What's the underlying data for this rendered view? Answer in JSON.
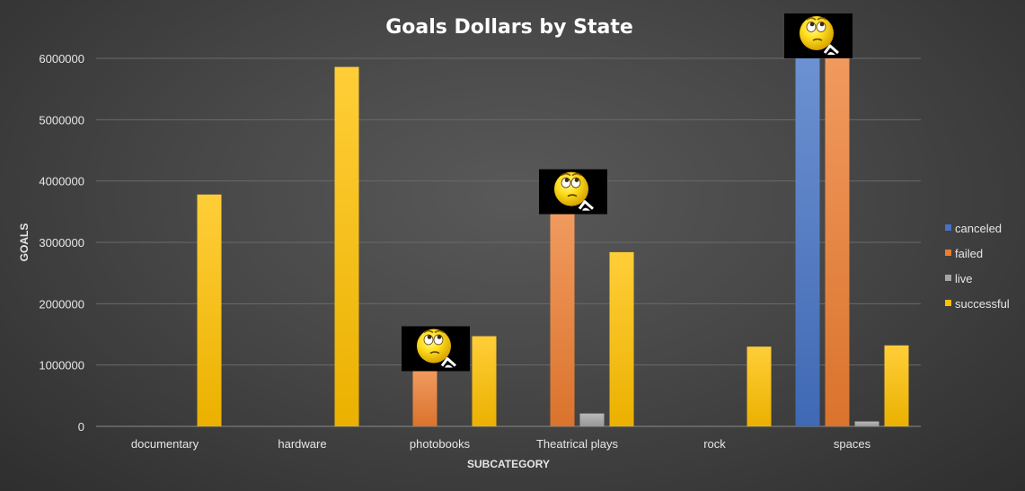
{
  "chart_data": {
    "type": "bar",
    "title": "Goals Dollars by State",
    "xlabel": "SUBCATEGORY",
    "ylabel": "GOALS",
    "categories": [
      "documentary",
      "hardware",
      "photobooks",
      "Theatrical plays",
      "rock",
      "spaces"
    ],
    "series": [
      {
        "name": "canceled",
        "color": "#4472C4",
        "values": [
          0,
          0,
          0,
          0,
          0,
          6000000
        ]
      },
      {
        "name": "failed",
        "color": "#ED7D31",
        "values": [
          0,
          0,
          900000,
          3460000,
          0,
          6000000
        ]
      },
      {
        "name": "live",
        "color": "#A5A5A5",
        "values": [
          0,
          0,
          0,
          210000,
          0,
          80000
        ]
      },
      {
        "name": "successful",
        "color": "#FFC000",
        "values": [
          3780000,
          5860000,
          1470000,
          2840000,
          1300000,
          1320000
        ]
      }
    ],
    "ylim": [
      0,
      6000000
    ],
    "yticks": [
      "0",
      "1000000",
      "2000000",
      "3000000",
      "4000000",
      "5000000",
      "6000000"
    ],
    "grid": true,
    "legend": "right",
    "emoji_annotations": [
      {
        "category": "photobooks",
        "series": "failed",
        "icon": "thinking-emoji-icon"
      },
      {
        "category": "Theatrical plays",
        "series": "failed",
        "icon": "thinking-emoji-icon"
      },
      {
        "category": "spaces",
        "series": "canceled",
        "icon": "thinking-emoji-icon"
      }
    ]
  }
}
